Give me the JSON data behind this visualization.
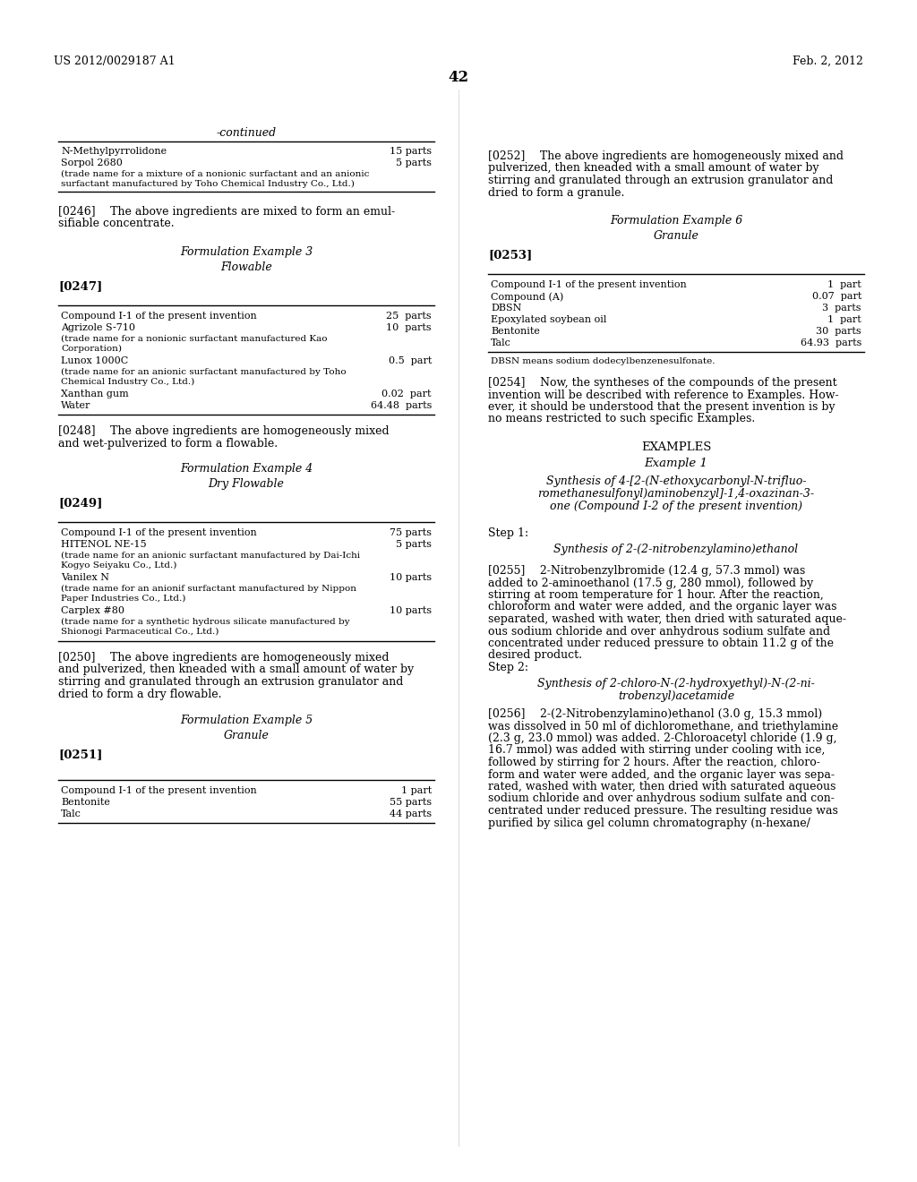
{
  "background_color": "#ffffff",
  "page_header_left": "US 2012/0029187 A1",
  "page_header_right": "Feb. 2, 2012",
  "page_number": "42",
  "left_column": {
    "continued_label": "-continued",
    "table1": {
      "rows": [
        {
          "name": "N-Methylpyrrolidone",
          "amount": "15 parts"
        },
        {
          "name": "Sorpol 2680",
          "amount": "5 parts"
        },
        {
          "name": "(trade name for a mixture of a nonionic surfactant and an anionic\nsurfactant manufactured by Toho Chemical Industry Co., Ltd.)",
          "amount": ""
        }
      ]
    },
    "para_0246": "[0246]  The above ingredients are mixed to form an emul-\nsifiable concentrate.",
    "section3_title": "Formulation Example 3",
    "section3_sub": "Flowable",
    "para_0247": "[0247]",
    "table2": {
      "rows": [
        {
          "name": "Compound I-1 of the present invention",
          "amount": "25  parts"
        },
        {
          "name": "Agrizole S-710",
          "amount": "10  parts"
        },
        {
          "name": "(trade name for a nonionic surfactant manufactured Kao\nCorporation)",
          "amount": ""
        },
        {
          "name": "Lunox 1000C",
          "amount": "0.5  part"
        },
        {
          "name": "(trade name for an anionic surfactant manufactured by Toho\nChemical Industry Co., Ltd.)",
          "amount": ""
        },
        {
          "name": "Xanthan gum",
          "amount": "0.02  part"
        },
        {
          "name": "Water",
          "amount": "64.48  parts"
        }
      ]
    },
    "para_0248": "[0248]  The above ingredients are homogeneously mixed\nand wet-pulverized to form a flowable.",
    "section4_title": "Formulation Example 4",
    "section4_sub": "Dry Flowable",
    "para_0249": "[0249]",
    "table3": {
      "rows": [
        {
          "name": "Compound I-1 of the present invention",
          "amount": "75 parts"
        },
        {
          "name": "HITENOL NE-15",
          "amount": "5 parts"
        },
        {
          "name": "(trade name for an anionic surfactant manufactured by Dai-Ichi\nKogyo Seiyaku Co., Ltd.)",
          "amount": ""
        },
        {
          "name": "Vanilex N",
          "amount": "10 parts"
        },
        {
          "name": "(trade name for an anionif surfactant manufactured by Nippon\nPaper Industries Co., Ltd.)",
          "amount": ""
        },
        {
          "name": "Carplex #80",
          "amount": "10 parts"
        },
        {
          "name": "(trade name for a synthetic hydrous silicate manufactured by\nShionogi Parmaceutical Co., Ltd.)",
          "amount": ""
        }
      ]
    },
    "para_0250": "[0250]  The above ingredients are homogeneously mixed\nand pulverized, then kneaded with a small amount of water by\nstirring and granulated through an extrusion granulator and\ndried to form a dry flowable.",
    "section5_title": "Formulation Example 5",
    "section5_sub": "Granule",
    "para_0251": "[0251]",
    "table4": {
      "rows": [
        {
          "name": "Compound I-1 of the present invention",
          "amount": "1 part"
        },
        {
          "name": "Bentonite",
          "amount": "55 parts"
        },
        {
          "name": "Talc",
          "amount": "44 parts"
        }
      ]
    }
  },
  "right_column": {
    "para_0252": "[0252]  The above ingredients are homogeneously mixed and\npulverized, then kneaded with a small amount of water by\nstirring and granulated through an extrusion granulator and\ndried to form a granule.",
    "section6_title": "Formulation Example 6",
    "section6_sub": "Granule",
    "para_0253": "[0253]",
    "table5": {
      "rows": [
        {
          "name": "Compound I-1 of the present invention",
          "amount": "1  part"
        },
        {
          "name": "Compound (A)",
          "amount": "0.07  part"
        },
        {
          "name": "DBSN",
          "amount": "3  parts"
        },
        {
          "name": "Epoxylated soybean oil",
          "amount": "1  part"
        },
        {
          "name": "Bentonite",
          "amount": "30  parts"
        },
        {
          "name": "Talc",
          "amount": "64.93  parts"
        }
      ]
    },
    "table5_footnote": "DBSN means sodium dodecylbenzenesulfonate.",
    "para_0254": "[0254]  Now, the syntheses of the compounds of the present\ninvention will be described with reference to Examples. How-\never, it should be understood that the present invention is by\nno means restricted to such specific Examples.",
    "examples_title": "EXAMPLES",
    "example1_title": "Example 1",
    "example1_sub": "Synthesis of 4-[2-(N-ethoxycarbonyl-N-trifluo-\nromethanesulfonyl)aminobenzyl]-1,4-oxazinan-3-\none (Compound I-2 of the present invention)",
    "step1_label": "Step 1:",
    "step1_title": "Synthesis of 2-(2-nitrobenzylamino)ethanol",
    "para_0255": "[0255]  2-Nitrobenzylbromide (12.4 g, 57.3 mmol) was\nadded to 2-aminoethanol (17.5 g, 280 mmol), followed by\nstirring at room temperature for 1 hour. After the reaction,\nchloroform and water were added, and the organic layer was\nseparated, washed with water, then dried with saturated aque-\nous sodium chloride and over anhydrous sodium sulfate and\nconcentrated under reduced pressure to obtain 11.2 g of the\ndesired product.",
    "step2_label": "Step 2:",
    "step2_title": "Synthesis of 2-chloro-N-(2-hydroxyethyl)-N-(2-ni-\ntrobenzyl)acetamide",
    "para_0256": "[0256]  2-(2-Nitrobenzylamino)ethanol (3.0 g, 15.3 mmol)\nwas dissolved in 50 ml of dichloromethane, and triethylamine\n(2.3 g, 23.0 mmol) was added. 2-Chloroacetyl chloride (1.9 g,\n16.7 mmol) was added with stirring under cooling with ice,\nfollowed by stirring for 2 hours. After the reaction, chloro-\nform and water were added, and the organic layer was sepa-\nrated, washed with water, then dried with saturated aqueous\nsodium chloride and over anhydrous sodium sulfate and con-\ncentrated under reduced pressure. The resulting residue was\npurified by silica gel column chromatography (n-hexane/"
  }
}
